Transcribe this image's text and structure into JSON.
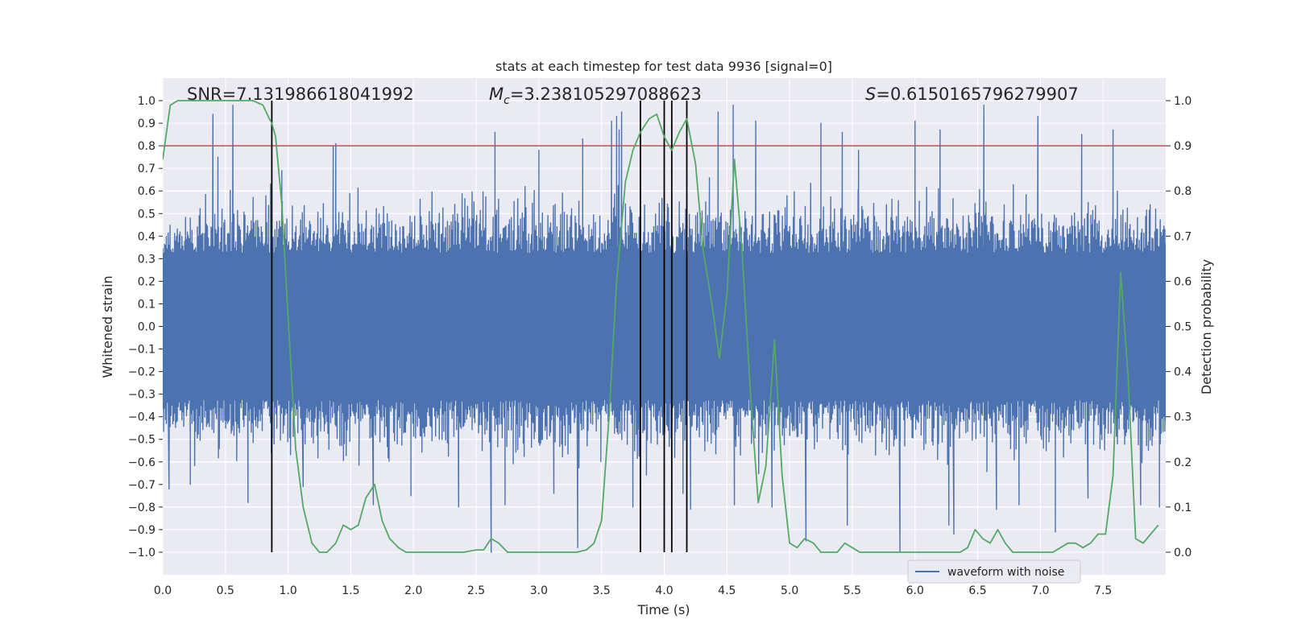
{
  "chart_data": {
    "type": "line",
    "title": "stats at each timestep for test data 9936 [signal=0]",
    "xlabel": "Time (s)",
    "ylabel": "Whitened strain",
    "y2label": "Detection probability",
    "xlim": [
      0.0,
      8.0
    ],
    "ylim": [
      -1.1,
      1.1
    ],
    "y2lim": [
      -0.05,
      1.05
    ],
    "grid": true,
    "x_ticks": [
      0.0,
      0.5,
      1.0,
      1.5,
      2.0,
      2.5,
      3.0,
      3.5,
      4.0,
      4.5,
      5.0,
      5.5,
      6.0,
      6.5,
      7.0,
      7.5
    ],
    "x_tick_labels": [
      "0.0",
      "0.5",
      "1.0",
      "1.5",
      "2.0",
      "2.5",
      "3.0",
      "3.5",
      "4.0",
      "4.5",
      "5.0",
      "5.5",
      "6.0",
      "6.5",
      "7.0",
      "7.5"
    ],
    "y_ticks": [
      1.0,
      0.9,
      0.8,
      0.7,
      0.6,
      0.5,
      0.4,
      0.3,
      0.2,
      0.1,
      0.0,
      -0.1,
      -0.2,
      -0.3,
      -0.4,
      -0.5,
      -0.6,
      -0.7,
      -0.8,
      -0.9,
      -1.0
    ],
    "y_tick_labels": [
      "1.0",
      "0.9",
      "0.8",
      "0.7",
      "0.6",
      "0.5",
      "0.4",
      "0.3",
      "0.2",
      "0.1",
      "0.0",
      "−0.1",
      "−0.2",
      "−0.3",
      "−0.4",
      "−0.5",
      "−0.6",
      "−0.7",
      "−0.8",
      "−0.9",
      "−1.0"
    ],
    "y2_ticks": [
      1.0,
      0.9,
      0.8,
      0.7,
      0.6,
      0.5,
      0.4,
      0.3,
      0.2,
      0.1,
      0.0
    ],
    "y2_tick_labels": [
      "1.0",
      "0.9",
      "0.8",
      "0.7",
      "0.6",
      "0.5",
      "0.4",
      "0.3",
      "0.2",
      "0.1",
      "0.0"
    ],
    "annotations": {
      "snr": "SNR=7.131986618041992",
      "mc_symbol": "M",
      "mc_sub": "c",
      "mc_value": "=3.238105297088623",
      "s_symbol": "S",
      "s_value": "=0.6150165796279907"
    },
    "legend": {
      "label": "waveform with noise",
      "placement": "lower-right"
    },
    "threshold": {
      "value": 0.9,
      "axis": "y2",
      "color": "#c44e52"
    },
    "vertical_markers": [
      0.87,
      3.81,
      4.0,
      4.06,
      4.18
    ],
    "waveform": {
      "name": "waveform with noise",
      "color": "#4c72b0",
      "sample_count": 1100,
      "peaks": [
        [
          0.22,
          0.48
        ],
        [
          0.4,
          0.94
        ],
        [
          0.44,
          0.75
        ],
        [
          0.56,
          0.98
        ],
        [
          0.86,
          0.63
        ],
        [
          0.95,
          0.69
        ],
        [
          1.36,
          0.8
        ],
        [
          1.38,
          0.81
        ],
        [
          2.65,
          0.86
        ],
        [
          3.0,
          0.78
        ],
        [
          3.35,
          0.83
        ],
        [
          3.58,
          0.91
        ],
        [
          3.62,
          0.93
        ],
        [
          3.64,
          0.87
        ],
        [
          3.66,
          0.95
        ],
        [
          4.43,
          0.95
        ],
        [
          4.55,
          0.98
        ],
        [
          4.73,
          0.91
        ],
        [
          5.25,
          0.9
        ],
        [
          5.42,
          0.86
        ],
        [
          5.55,
          0.78
        ],
        [
          6.0,
          0.91
        ],
        [
          6.2,
          0.87
        ],
        [
          6.55,
          0.98
        ],
        [
          6.98,
          0.93
        ],
        [
          7.33,
          0.85
        ],
        [
          7.58,
          0.87
        ]
      ],
      "troughs": [
        [
          0.05,
          -0.72
        ],
        [
          0.22,
          -0.7
        ],
        [
          0.68,
          -0.78
        ],
        [
          1.12,
          -0.71
        ],
        [
          1.68,
          -0.79
        ],
        [
          1.98,
          -0.75
        ],
        [
          2.36,
          -0.8
        ],
        [
          2.62,
          -1.0
        ],
        [
          2.73,
          -0.79
        ],
        [
          3.12,
          -0.74
        ],
        [
          3.31,
          -0.98
        ],
        [
          3.75,
          -0.8
        ],
        [
          4.15,
          -0.74
        ],
        [
          4.21,
          -0.81
        ],
        [
          4.56,
          -0.79
        ],
        [
          4.86,
          -0.8
        ],
        [
          5.13,
          -0.95
        ],
        [
          5.46,
          -0.88
        ],
        [
          5.88,
          -1.0
        ],
        [
          6.27,
          -0.88
        ],
        [
          6.31,
          -0.92
        ],
        [
          6.65,
          -0.81
        ],
        [
          6.83,
          -0.79
        ],
        [
          7.12,
          -0.91
        ],
        [
          7.38,
          -0.76
        ],
        [
          7.8,
          -0.79
        ],
        [
          7.95,
          -0.8
        ]
      ],
      "typical_amplitude": 0.38
    },
    "probability": {
      "name": "Detection probability",
      "color": "#55a868",
      "x": [
        0.0,
        0.06,
        0.12,
        0.2,
        0.3,
        0.5,
        0.65,
        0.72,
        0.8,
        0.85,
        0.87,
        0.9,
        0.95,
        1.0,
        1.06,
        1.12,
        1.19,
        1.25,
        1.31,
        1.38,
        1.44,
        1.5,
        1.56,
        1.62,
        1.69,
        1.75,
        1.81,
        1.88,
        1.94,
        2.0,
        2.1,
        2.2,
        2.3,
        2.4,
        2.5,
        2.56,
        2.62,
        2.68,
        2.75,
        2.81,
        2.88,
        2.94,
        3.0,
        3.1,
        3.2,
        3.3,
        3.38,
        3.44,
        3.5,
        3.56,
        3.62,
        3.69,
        3.75,
        3.81,
        3.88,
        3.94,
        4.0,
        4.06,
        4.12,
        4.18,
        4.25,
        4.31,
        4.38,
        4.44,
        4.5,
        4.56,
        4.62,
        4.69,
        4.75,
        4.81,
        4.88,
        4.94,
        5.0,
        5.06,
        5.12,
        5.19,
        5.25,
        5.31,
        5.38,
        5.44,
        5.5,
        5.56,
        5.62,
        5.7,
        5.8,
        5.9,
        6.0,
        6.1,
        6.2,
        6.3,
        6.36,
        6.42,
        6.48,
        6.54,
        6.6,
        6.66,
        6.72,
        6.78,
        6.84,
        6.9,
        7.0,
        7.1,
        7.16,
        7.22,
        7.28,
        7.34,
        7.4,
        7.46,
        7.52,
        7.58,
        7.64,
        7.7,
        7.76,
        7.82,
        7.88,
        7.94
      ],
      "y": [
        0.87,
        0.99,
        1.0,
        1.0,
        1.0,
        1.0,
        1.0,
        1.0,
        0.99,
        0.96,
        0.95,
        0.92,
        0.77,
        0.52,
        0.23,
        0.1,
        0.02,
        0.0,
        0.0,
        0.02,
        0.06,
        0.05,
        0.06,
        0.12,
        0.15,
        0.07,
        0.03,
        0.01,
        0.0,
        0.0,
        0.0,
        0.0,
        0.0,
        0.0,
        0.005,
        0.005,
        0.03,
        0.02,
        0.0,
        0.0,
        0.0,
        0.0,
        0.0,
        0.0,
        0.0,
        0.0,
        0.005,
        0.02,
        0.07,
        0.3,
        0.6,
        0.82,
        0.89,
        0.93,
        0.96,
        0.97,
        0.92,
        0.89,
        0.93,
        0.96,
        0.86,
        0.67,
        0.55,
        0.43,
        0.57,
        0.87,
        0.67,
        0.34,
        0.11,
        0.19,
        0.47,
        0.17,
        0.02,
        0.01,
        0.03,
        0.02,
        0.0,
        0.0,
        0.0,
        0.02,
        0.01,
        0.0,
        0.0,
        0.0,
        0.0,
        0.0,
        0.0,
        0.0,
        0.0,
        0.0,
        0.0,
        0.01,
        0.05,
        0.03,
        0.02,
        0.05,
        0.02,
        0.0,
        0.0,
        0.0,
        0.0,
        0.0,
        0.01,
        0.02,
        0.02,
        0.01,
        0.02,
        0.04,
        0.04,
        0.17,
        0.62,
        0.39,
        0.03,
        0.02,
        0.04,
        0.06
      ]
    }
  }
}
